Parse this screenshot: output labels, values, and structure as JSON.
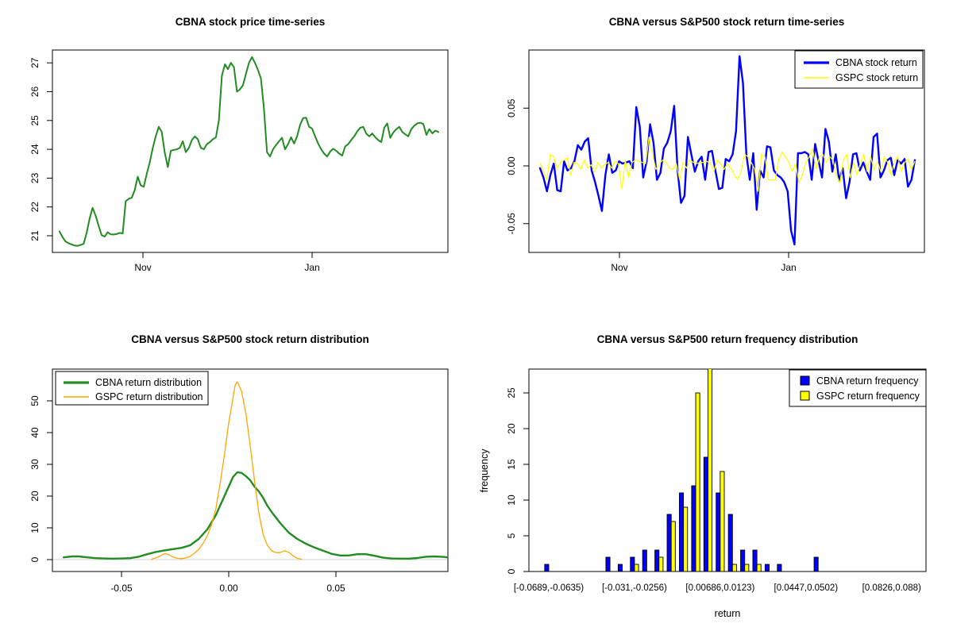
{
  "figure_background": "#ffffff",
  "axis_color": "#000000",
  "chart_data": [
    {
      "id": "price-timeseries",
      "type": "line",
      "title": "CBNA stock price time-series",
      "xlabel": "",
      "ylabel": "",
      "x_tick_labels": [
        "Nov",
        "Jan"
      ],
      "y_ticks": [
        21,
        22,
        23,
        24,
        25,
        26,
        27
      ],
      "ylim": [
        20.55,
        27.4
      ],
      "grid": false,
      "series": [
        {
          "name": "CBNA stock price",
          "color": "#228B22",
          "line_width": 2,
          "values": [
            21.15,
            20.95,
            20.8,
            20.74,
            20.7,
            20.66,
            20.65,
            20.68,
            20.72,
            21.1,
            21.6,
            21.97,
            21.7,
            21.35,
            21.02,
            20.97,
            21.12,
            21.05,
            21.04,
            21.06,
            21.1,
            21.08,
            22.2,
            22.28,
            22.32,
            22.58,
            23.05,
            22.75,
            22.7,
            23.15,
            23.55,
            24.05,
            24.45,
            24.78,
            24.6,
            23.88,
            23.38,
            23.95,
            23.98,
            24.0,
            24.05,
            24.28,
            23.9,
            24.05,
            24.32,
            24.45,
            24.35,
            24.05,
            24.0,
            24.18,
            24.25,
            24.35,
            24.42,
            25.0,
            26.55,
            26.95,
            26.78,
            27.0,
            26.85,
            26.0,
            26.08,
            26.22,
            26.62,
            27.0,
            27.2,
            27.0,
            26.75,
            26.45,
            25.4,
            23.9,
            23.75,
            24.0,
            24.15,
            24.28,
            24.4,
            24.0,
            24.18,
            24.42,
            24.2,
            24.45,
            24.85,
            25.08,
            25.1,
            24.78,
            24.72,
            24.45,
            24.2,
            24.0,
            23.85,
            23.75,
            23.92,
            24.02,
            23.95,
            23.85,
            23.78,
            24.1,
            24.18,
            24.32,
            24.45,
            24.62,
            24.75,
            24.78,
            24.55,
            24.45,
            24.55,
            24.42,
            24.32,
            24.25,
            24.75,
            24.9,
            24.4,
            24.58,
            24.7,
            24.78,
            24.6,
            24.52,
            24.45,
            24.7,
            24.82,
            24.9,
            24.92,
            24.88,
            24.5,
            24.7,
            24.55,
            24.65,
            24.6
          ]
        }
      ]
    },
    {
      "id": "return-timeseries",
      "type": "line",
      "title": "CBNA versus S&P500 stock return time-series",
      "xlabel": "",
      "ylabel": "",
      "x_tick_labels": [
        "Nov",
        "Jan"
      ],
      "y_ticks": [
        -0.05,
        0.0,
        0.05
      ],
      "y_tick_labels": [
        "-0.05",
        "0.00",
        "0.05"
      ],
      "ylim": [
        -0.075,
        0.0995
      ],
      "grid": false,
      "legend_position": "topright",
      "series": [
        {
          "name": "CBNA stock return",
          "color": "#0000FF",
          "line_width": 2.4,
          "values": [
            -0.002,
            -0.01,
            -0.022,
            -0.008,
            0.002,
            -0.021,
            -0.022,
            0.004,
            -0.004,
            -0.002,
            0.004,
            0.018,
            0.014,
            0.021,
            0.024,
            -0.004,
            -0.014,
            -0.026,
            -0.039,
            -0.008,
            0.01,
            -0.006,
            -0.004,
            0.004,
            0.002,
            0.003,
            0.004,
            -0.002,
            0.051,
            0.034,
            -0.01,
            0.004,
            0.036,
            0.02,
            -0.012,
            -0.006,
            0.015,
            0.02,
            0.03,
            0.052,
            -0.004,
            -0.032,
            -0.026,
            0.025,
            0.01,
            -0.005,
            0.004,
            0.008,
            -0.012,
            0.012,
            0.013,
            -0.004,
            -0.02,
            -0.019,
            0.006,
            0.004,
            0.01,
            0.03,
            0.095,
            0.072,
            0.01,
            -0.012,
            0.011,
            -0.038,
            -0.004,
            -0.01,
            0.017,
            0.016,
            -0.004,
            -0.008,
            -0.01,
            -0.014,
            -0.022,
            -0.056,
            -0.068,
            0.011,
            0.011,
            0.012,
            0.01,
            -0.012,
            0.019,
            0.004,
            -0.01,
            0.032,
            0.021,
            -0.005,
            0.01,
            -0.013,
            -0.002,
            -0.028,
            -0.014,
            0.01,
            0.011,
            -0.004,
            0.003,
            -0.005,
            -0.012,
            0.025,
            0.028,
            -0.01,
            -0.004,
            0.005,
            0.007,
            -0.008,
            0.005,
            0.002,
            0.006,
            -0.018,
            -0.012,
            0.005
          ]
        },
        {
          "name": "GSPC stock return",
          "color": "#FFFF00",
          "line_width": 1.2,
          "values": [
            0.002,
            -0.005,
            -0.012,
            0.01,
            0.008,
            -0.002,
            0.003,
            0.005,
            0.007,
            -0.008,
            0.003,
            0.002,
            -0.003,
            0.005,
            -0.002,
            0.001,
            -0.005,
            0.003,
            -0.002,
            0.001,
            0.003,
            -0.002,
            0.004,
            0.002,
            -0.02,
            0.005,
            -0.01,
            0.003,
            0.005,
            0.004,
            0.003,
            0.002,
            0.025,
            0.01,
            -0.003,
            0.002,
            0.005,
            0.003,
            -0.002,
            -0.003,
            0.002,
            -0.012,
            0.003,
            -0.002,
            0.005,
            0.003,
            0.002,
            0.003,
            0.003,
            0.004,
            0.002,
            -0.005,
            0.005,
            0.002,
            -0.003,
            0.002,
            -0.002,
            -0.008,
            -0.012,
            -0.005,
            0.01,
            0.008,
            0.003,
            -0.003,
            -0.022,
            0.01,
            0.008,
            -0.012,
            -0.012,
            -0.012,
            0.005,
            0.012,
            0.008,
            0.003,
            -0.005,
            0.002,
            -0.015,
            -0.008,
            0.003,
            0.008,
            0.015,
            -0.003,
            0.008,
            0.01,
            0.003,
            0.008,
            0.005,
            -0.008,
            -0.015,
            0.005,
            0.01,
            -0.01,
            0.003,
            -0.008,
            0.002,
            0.01,
            -0.005,
            0.008,
            -0.003,
            0.004,
            -0.005,
            0.008,
            0.003,
            -0.008,
            0.004,
            0.008,
            -0.005,
            0.003,
            0.006,
            -0.003,
            0.004
          ]
        }
      ]
    },
    {
      "id": "return-distribution",
      "type": "area",
      "title": "CBNA versus S&P500 stock return distribution",
      "xlabel": "",
      "ylabel": "",
      "x_ticks": [
        -0.05,
        0.0,
        0.05
      ],
      "x_tick_labels": [
        "-0.05",
        "0.00",
        "0.05"
      ],
      "y_ticks": [
        0,
        10,
        20,
        30,
        40,
        50
      ],
      "baseline_color": "#D9D9D9",
      "grid": false,
      "legend_position": "topleft",
      "series": [
        {
          "name": "CBNA return distribution",
          "color": "#228B22",
          "line_width": 2.4,
          "points": [
            [
              -0.077,
              0.7
            ],
            [
              -0.073,
              1.0
            ],
            [
              -0.07,
              1.0
            ],
            [
              -0.066,
              0.7
            ],
            [
              -0.062,
              0.45
            ],
            [
              -0.058,
              0.35
            ],
            [
              -0.054,
              0.3
            ],
            [
              -0.05,
              0.35
            ],
            [
              -0.046,
              0.45
            ],
            [
              -0.042,
              0.9
            ],
            [
              -0.038,
              1.7
            ],
            [
              -0.034,
              2.4
            ],
            [
              -0.03,
              2.9
            ],
            [
              -0.026,
              3.3
            ],
            [
              -0.022,
              3.7
            ],
            [
              -0.018,
              4.5
            ],
            [
              -0.014,
              6.5
            ],
            [
              -0.01,
              9.5
            ],
            [
              -0.006,
              14.0
            ],
            [
              -0.002,
              20.0
            ],
            [
              0.0,
              23.0
            ],
            [
              0.002,
              26.0
            ],
            [
              0.004,
              27.5
            ],
            [
              0.006,
              27.3
            ],
            [
              0.008,
              26.3
            ],
            [
              0.01,
              25.0
            ],
            [
              0.012,
              23.0
            ],
            [
              0.014,
              21.5
            ],
            [
              0.016,
              19.5
            ],
            [
              0.018,
              17.0
            ],
            [
              0.02,
              15.0
            ],
            [
              0.024,
              11.5
            ],
            [
              0.028,
              8.5
            ],
            [
              0.032,
              6.5
            ],
            [
              0.036,
              5.0
            ],
            [
              0.04,
              3.8
            ],
            [
              0.044,
              2.8
            ],
            [
              0.048,
              1.8
            ],
            [
              0.052,
              1.3
            ],
            [
              0.056,
              1.3
            ],
            [
              0.06,
              1.7
            ],
            [
              0.064,
              1.7
            ],
            [
              0.068,
              1.2
            ],
            [
              0.072,
              0.6
            ],
            [
              0.076,
              0.35
            ],
            [
              0.08,
              0.3
            ],
            [
              0.084,
              0.3
            ],
            [
              0.088,
              0.5
            ],
            [
              0.092,
              0.9
            ],
            [
              0.096,
              1.0
            ],
            [
              0.1,
              0.85
            ],
            [
              0.102,
              0.7
            ]
          ]
        },
        {
          "name": "GSPC return distribution",
          "color": "#FFA500",
          "line_width": 1.3,
          "points": [
            [
              -0.036,
              0.1
            ],
            [
              -0.033,
              0.8
            ],
            [
              -0.03,
              1.9
            ],
            [
              -0.028,
              1.6
            ],
            [
              -0.026,
              0.8
            ],
            [
              -0.024,
              0.4
            ],
            [
              -0.022,
              0.3
            ],
            [
              -0.02,
              0.5
            ],
            [
              -0.018,
              1.0
            ],
            [
              -0.016,
              2.0
            ],
            [
              -0.014,
              3.2
            ],
            [
              -0.012,
              5.0
            ],
            [
              -0.01,
              7.5
            ],
            [
              -0.008,
              11.0
            ],
            [
              -0.006,
              16.0
            ],
            [
              -0.004,
              24.0
            ],
            [
              -0.002,
              33.0
            ],
            [
              0.0,
              43.0
            ],
            [
              0.002,
              51.0
            ],
            [
              0.003,
              55.0
            ],
            [
              0.004,
              56.0
            ],
            [
              0.006,
              53.0
            ],
            [
              0.008,
              46.0
            ],
            [
              0.01,
              36.0
            ],
            [
              0.012,
              25.0
            ],
            [
              0.014,
              15.0
            ],
            [
              0.016,
              8.0
            ],
            [
              0.018,
              4.5
            ],
            [
              0.02,
              2.8
            ],
            [
              0.022,
              2.2
            ],
            [
              0.024,
              2.2
            ],
            [
              0.026,
              2.8
            ],
            [
              0.028,
              2.3
            ],
            [
              0.03,
              1.2
            ],
            [
              0.032,
              0.4
            ],
            [
              0.034,
              0.1
            ]
          ]
        }
      ]
    },
    {
      "id": "return-frequency",
      "type": "bar",
      "title": "CBNA versus S&P500 return frequency distribution",
      "xlabel": "return",
      "ylabel": "frequency",
      "y_ticks": [
        0,
        5,
        10,
        15,
        20,
        25
      ],
      "bins": 29,
      "x_tick_labels": [
        "[-0.0689,-0.0635)",
        "[-0.031,-0.0256)",
        "[0.00686,0.0123)",
        "[0.0447,0.0502)",
        "[0.0826,0.088)"
      ],
      "label_bin_positions": [
        1,
        8,
        15,
        22,
        29
      ],
      "grid": false,
      "legend_position": "topright",
      "series": [
        {
          "name": "CBNA return frequency",
          "color": "#0000FF",
          "values": [
            1,
            0,
            0,
            0,
            0,
            2,
            1,
            2,
            3,
            3,
            8,
            11,
            12,
            16,
            11,
            8,
            3,
            3,
            1,
            1,
            0,
            0,
            2,
            0,
            0,
            0,
            0,
            0,
            0
          ]
        },
        {
          "name": "GSPC return frequency",
          "color": "#FFFF00",
          "values": [
            0,
            0,
            0,
            0,
            0,
            0,
            0,
            1,
            0,
            2,
            7,
            9,
            25,
            29,
            14,
            1,
            1,
            1,
            0,
            0,
            0,
            0,
            0,
            0,
            0,
            0,
            0,
            0,
            0
          ]
        }
      ]
    }
  ]
}
